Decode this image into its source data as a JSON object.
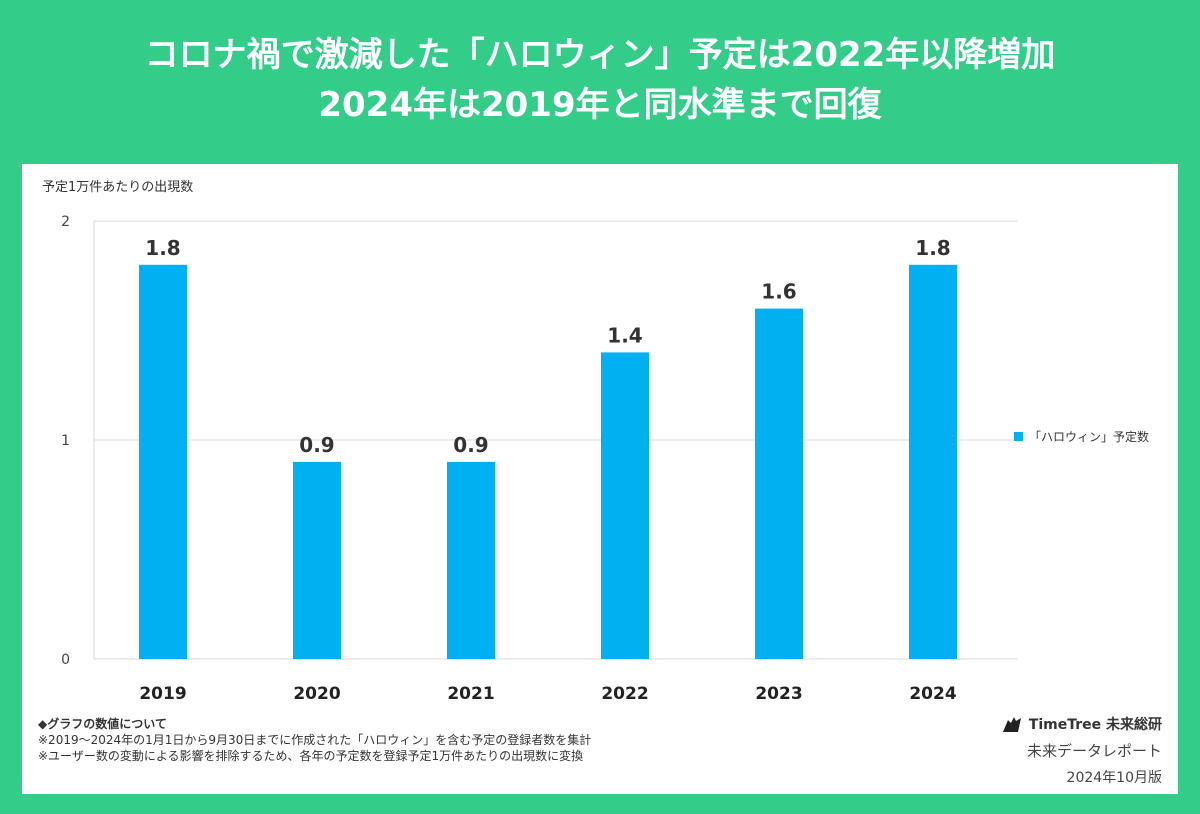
{
  "header": {
    "title_line1": "コロナ禍で激減した「ハロウィン」予定は2022年以降増加",
    "title_line2": "2024年は2019年と同水準まで回復"
  },
  "chart_data": {
    "type": "bar",
    "ylabel": "予定1万件あたりの出現数",
    "categories": [
      "2019",
      "2020",
      "2021",
      "2022",
      "2023",
      "2024"
    ],
    "series": [
      {
        "name": "「ハロウィン」予定数",
        "values": [
          1.8,
          0.9,
          0.9,
          1.4,
          1.6,
          1.8
        ]
      }
    ],
    "data_labels": [
      "1.8",
      "0.9",
      "0.9",
      "1.4",
      "1.6",
      "1.8"
    ],
    "ylim": [
      0,
      2
    ],
    "yticks": [
      "0",
      "1",
      "2"
    ],
    "grid": true,
    "legend": "right",
    "bar_color": "#00b0f0"
  },
  "notes": {
    "heading": "◆グラフの数値について",
    "line1": "※2019～2024年の1月1日から9月30日までに作成された「ハロウィン」を含む予定の登録者数を集計",
    "line2": "※ユーザー数の変動による影響を排除するため、各年の予定数を登録予定1万件あたりの出現数に変換"
  },
  "brand": {
    "name": "TimeTree 未来総研",
    "sub": "未来データレポート",
    "date": "2024年10月版",
    "logo_icon": "timetree-logo-icon"
  }
}
